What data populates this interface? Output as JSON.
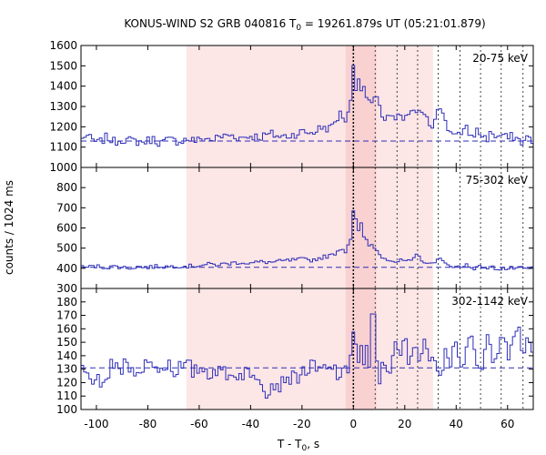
{
  "chart_data": {
    "type": "line",
    "title_parts": [
      "KONUS-WIND S2 GRB 040816 T",
      "0",
      " = 19261.879s UT (05:21:01.879)"
    ],
    "xlabel_parts": [
      "T - T",
      "0",
      ", s"
    ],
    "ylabel": "counts / 1024 ms",
    "xlim": [
      -106,
      70
    ],
    "xticks": [
      -100,
      -80,
      -60,
      -40,
      -20,
      0,
      20,
      40,
      60
    ],
    "xtick_labels": [
      "-100",
      "-80",
      "-60",
      "-40",
      "-20",
      "0",
      "20",
      "40",
      "60"
    ],
    "bin_width": 1.024,
    "t0_line": 0,
    "regions": [
      {
        "x0": -65,
        "x1": 31,
        "color": "#fde6e6"
      },
      {
        "x0": -3,
        "x1": 9,
        "color": "#f9d1d1"
      }
    ],
    "vlines": [
      8.5,
      17,
      25,
      33,
      41.5,
      49.5,
      57.5,
      66
    ],
    "panels": [
      {
        "label": "20-75 keV",
        "ylim": [
          1000,
          1600
        ],
        "yticks": [
          1000,
          1100,
          1200,
          1300,
          1400,
          1500,
          1600
        ],
        "ytick_labels": [
          "1000",
          "1100",
          "1200",
          "1300",
          "1400",
          "1500",
          "1600"
        ],
        "background": 1130,
        "knots": [
          [
            -106,
            1130
          ],
          [
            -104,
            1165
          ],
          [
            -102,
            1135
          ],
          [
            -99,
            1120
          ],
          [
            -96,
            1150
          ],
          [
            -93,
            1125
          ],
          [
            -90,
            1140
          ],
          [
            -86,
            1130
          ],
          [
            -82,
            1125
          ],
          [
            -78,
            1140
          ],
          [
            -75,
            1120
          ],
          [
            -72,
            1135
          ],
          [
            -68,
            1130
          ],
          [
            -64,
            1140
          ],
          [
            -61,
            1130
          ],
          [
            -58,
            1145
          ],
          [
            -55,
            1135
          ],
          [
            -52,
            1150
          ],
          [
            -48,
            1160
          ],
          [
            -44,
            1145
          ],
          [
            -40,
            1155
          ],
          [
            -36,
            1150
          ],
          [
            -32,
            1165
          ],
          [
            -28,
            1150
          ],
          [
            -24,
            1160
          ],
          [
            -20,
            1175
          ],
          [
            -16,
            1170
          ],
          [
            -12,
            1200
          ],
          [
            -9,
            1190
          ],
          [
            -7,
            1230
          ],
          [
            -5,
            1265
          ],
          [
            -3,
            1235
          ],
          [
            -1,
            1320
          ],
          [
            -0.2,
            1500
          ],
          [
            0.3,
            1520
          ],
          [
            1,
            1400
          ],
          [
            2,
            1440
          ],
          [
            3,
            1395
          ],
          [
            4.5,
            1370
          ],
          [
            6,
            1330
          ],
          [
            7.5,
            1310
          ],
          [
            9,
            1350
          ],
          [
            10,
            1290
          ],
          [
            12,
            1240
          ],
          [
            14,
            1265
          ],
          [
            16,
            1230
          ],
          [
            18,
            1250
          ],
          [
            20,
            1225
          ],
          [
            22,
            1280
          ],
          [
            24,
            1260
          ],
          [
            25.5,
            1290
          ],
          [
            27,
            1250
          ],
          [
            29,
            1230
          ],
          [
            31,
            1200
          ],
          [
            32,
            1260
          ],
          [
            33,
            1320
          ],
          [
            34,
            1300
          ],
          [
            35,
            1250
          ],
          [
            36,
            1210
          ],
          [
            38,
            1170
          ],
          [
            40,
            1180
          ],
          [
            42,
            1155
          ],
          [
            44,
            1190
          ],
          [
            46,
            1150
          ],
          [
            48,
            1180
          ],
          [
            50,
            1160
          ],
          [
            52,
            1140
          ],
          [
            54,
            1175
          ],
          [
            56,
            1145
          ],
          [
            58,
            1165
          ],
          [
            60,
            1140
          ],
          [
            62,
            1155
          ],
          [
            64,
            1140
          ],
          [
            66,
            1120
          ],
          [
            68,
            1150
          ],
          [
            70,
            1135
          ]
        ],
        "jitter": 22
      },
      {
        "label": "75-302 keV",
        "ylim": [
          300,
          900
        ],
        "yticks": [
          300,
          400,
          500,
          600,
          700,
          800
        ],
        "ytick_labels": [
          "300",
          "400",
          "500",
          "600",
          "700",
          "800"
        ],
        "background": 405,
        "knots": [
          [
            -106,
            405
          ],
          [
            -100,
            410
          ],
          [
            -96,
            405
          ],
          [
            -92,
            410
          ],
          [
            -88,
            400
          ],
          [
            -84,
            408
          ],
          [
            -80,
            405
          ],
          [
            -76,
            410
          ],
          [
            -72,
            408
          ],
          [
            -68,
            412
          ],
          [
            -64,
            410
          ],
          [
            -60,
            415
          ],
          [
            -56,
            420
          ],
          [
            -52,
            418
          ],
          [
            -48,
            425
          ],
          [
            -44,
            430
          ],
          [
            -40,
            425
          ],
          [
            -36,
            432
          ],
          [
            -32,
            430
          ],
          [
            -28,
            435
          ],
          [
            -24,
            440
          ],
          [
            -20,
            445
          ],
          [
            -16,
            440
          ],
          [
            -12,
            455
          ],
          [
            -8,
            465
          ],
          [
            -5,
            500
          ],
          [
            -3,
            485
          ],
          [
            -1.5,
            540
          ],
          [
            -0.5,
            560
          ],
          [
            0,
            690
          ],
          [
            0.5,
            760
          ],
          [
            1,
            640
          ],
          [
            2,
            580
          ],
          [
            3,
            620
          ],
          [
            4,
            560
          ],
          [
            5,
            540
          ],
          [
            6,
            510
          ],
          [
            7.5,
            520
          ],
          [
            9,
            490
          ],
          [
            10,
            470
          ],
          [
            11,
            460
          ],
          [
            13,
            450
          ],
          [
            15,
            440
          ],
          [
            17,
            430
          ],
          [
            19,
            440
          ],
          [
            21,
            435
          ],
          [
            23,
            430
          ],
          [
            24.5,
            470
          ],
          [
            26,
            450
          ],
          [
            28,
            430
          ],
          [
            30,
            415
          ],
          [
            32,
            440
          ],
          [
            33,
            455
          ],
          [
            35,
            430
          ],
          [
            37,
            410
          ],
          [
            40,
            415
          ],
          [
            42,
            400
          ],
          [
            44,
            420
          ],
          [
            46,
            405
          ],
          [
            48,
            400
          ],
          [
            50,
            410
          ],
          [
            52,
            400
          ],
          [
            54,
            405
          ],
          [
            56,
            398
          ],
          [
            58,
            400
          ],
          [
            60,
            395
          ],
          [
            62,
            402
          ],
          [
            64,
            398
          ],
          [
            66,
            400
          ],
          [
            68,
            395
          ],
          [
            70,
            402
          ]
        ],
        "jitter": 10
      },
      {
        "label": "302-1142 keV",
        "ylim": [
          100,
          190
        ],
        "yticks": [
          100,
          110,
          120,
          130,
          140,
          150,
          160,
          170,
          180
        ],
        "ytick_labels": [
          "100",
          "110",
          "120",
          "130",
          "140",
          "150",
          "160",
          "170",
          "180"
        ],
        "background": 131,
        "knots": [
          [
            -106,
            133
          ],
          [
            -103,
            122
          ],
          [
            -100,
            125
          ],
          [
            -98,
            110
          ],
          [
            -96,
            122
          ],
          [
            -94,
            137
          ],
          [
            -92,
            128
          ],
          [
            -90,
            130
          ],
          [
            -88,
            135
          ],
          [
            -86,
            128
          ],
          [
            -84,
            133
          ],
          [
            -82,
            125
          ],
          [
            -80,
            140
          ],
          [
            -78,
            130
          ],
          [
            -76,
            132
          ],
          [
            -74,
            130
          ],
          [
            -72,
            136
          ],
          [
            -70,
            128
          ],
          [
            -68,
            132
          ],
          [
            -66,
            130
          ],
          [
            -64,
            133
          ],
          [
            -62,
            126
          ],
          [
            -60,
            132
          ],
          [
            -58,
            130
          ],
          [
            -56,
            127
          ],
          [
            -54,
            131
          ],
          [
            -52,
            126
          ],
          [
            -50,
            130
          ],
          [
            -48,
            124
          ],
          [
            -46,
            128
          ],
          [
            -44,
            125
          ],
          [
            -42,
            130
          ],
          [
            -40,
            122
          ],
          [
            -38,
            127
          ],
          [
            -36,
            124
          ],
          [
            -34,
            114
          ],
          [
            -32,
            118
          ],
          [
            -30,
            120
          ],
          [
            -28,
            118
          ],
          [
            -26,
            127
          ],
          [
            -24,
            122
          ],
          [
            -22,
            125
          ],
          [
            -20,
            127
          ],
          [
            -18,
            130
          ],
          [
            -16,
            132
          ],
          [
            -14,
            128
          ],
          [
            -12,
            130
          ],
          [
            -10,
            128
          ],
          [
            -8,
            132
          ],
          [
            -6,
            126
          ],
          [
            -4,
            125
          ],
          [
            -2,
            130
          ],
          [
            -1,
            145
          ],
          [
            0,
            160
          ],
          [
            1,
            148
          ],
          [
            2,
            132
          ],
          [
            3,
            150
          ],
          [
            4,
            130
          ],
          [
            5,
            145
          ],
          [
            6,
            125
          ],
          [
            7,
            165
          ],
          [
            8,
            175
          ],
          [
            9,
            140
          ],
          [
            10,
            122
          ],
          [
            12,
            135
          ],
          [
            14,
            128
          ],
          [
            16,
            150
          ],
          [
            18,
            135
          ],
          [
            20,
            155
          ],
          [
            22,
            130
          ],
          [
            24,
            150
          ],
          [
            26,
            140
          ],
          [
            28,
            155
          ],
          [
            30,
            130
          ],
          [
            32,
            140
          ],
          [
            34,
            125
          ],
          [
            36,
            150
          ],
          [
            38,
            135
          ],
          [
            40,
            155
          ],
          [
            42,
            130
          ],
          [
            44,
            145
          ],
          [
            46,
            150
          ],
          [
            48,
            135
          ],
          [
            50,
            125
          ],
          [
            52,
            155
          ],
          [
            54,
            140
          ],
          [
            56,
            145
          ],
          [
            58,
            160
          ],
          [
            60,
            138
          ],
          [
            62,
            145
          ],
          [
            64,
            165
          ],
          [
            66,
            142
          ],
          [
            68,
            150
          ],
          [
            70,
            140
          ]
        ],
        "jitter": 6
      }
    ]
  }
}
